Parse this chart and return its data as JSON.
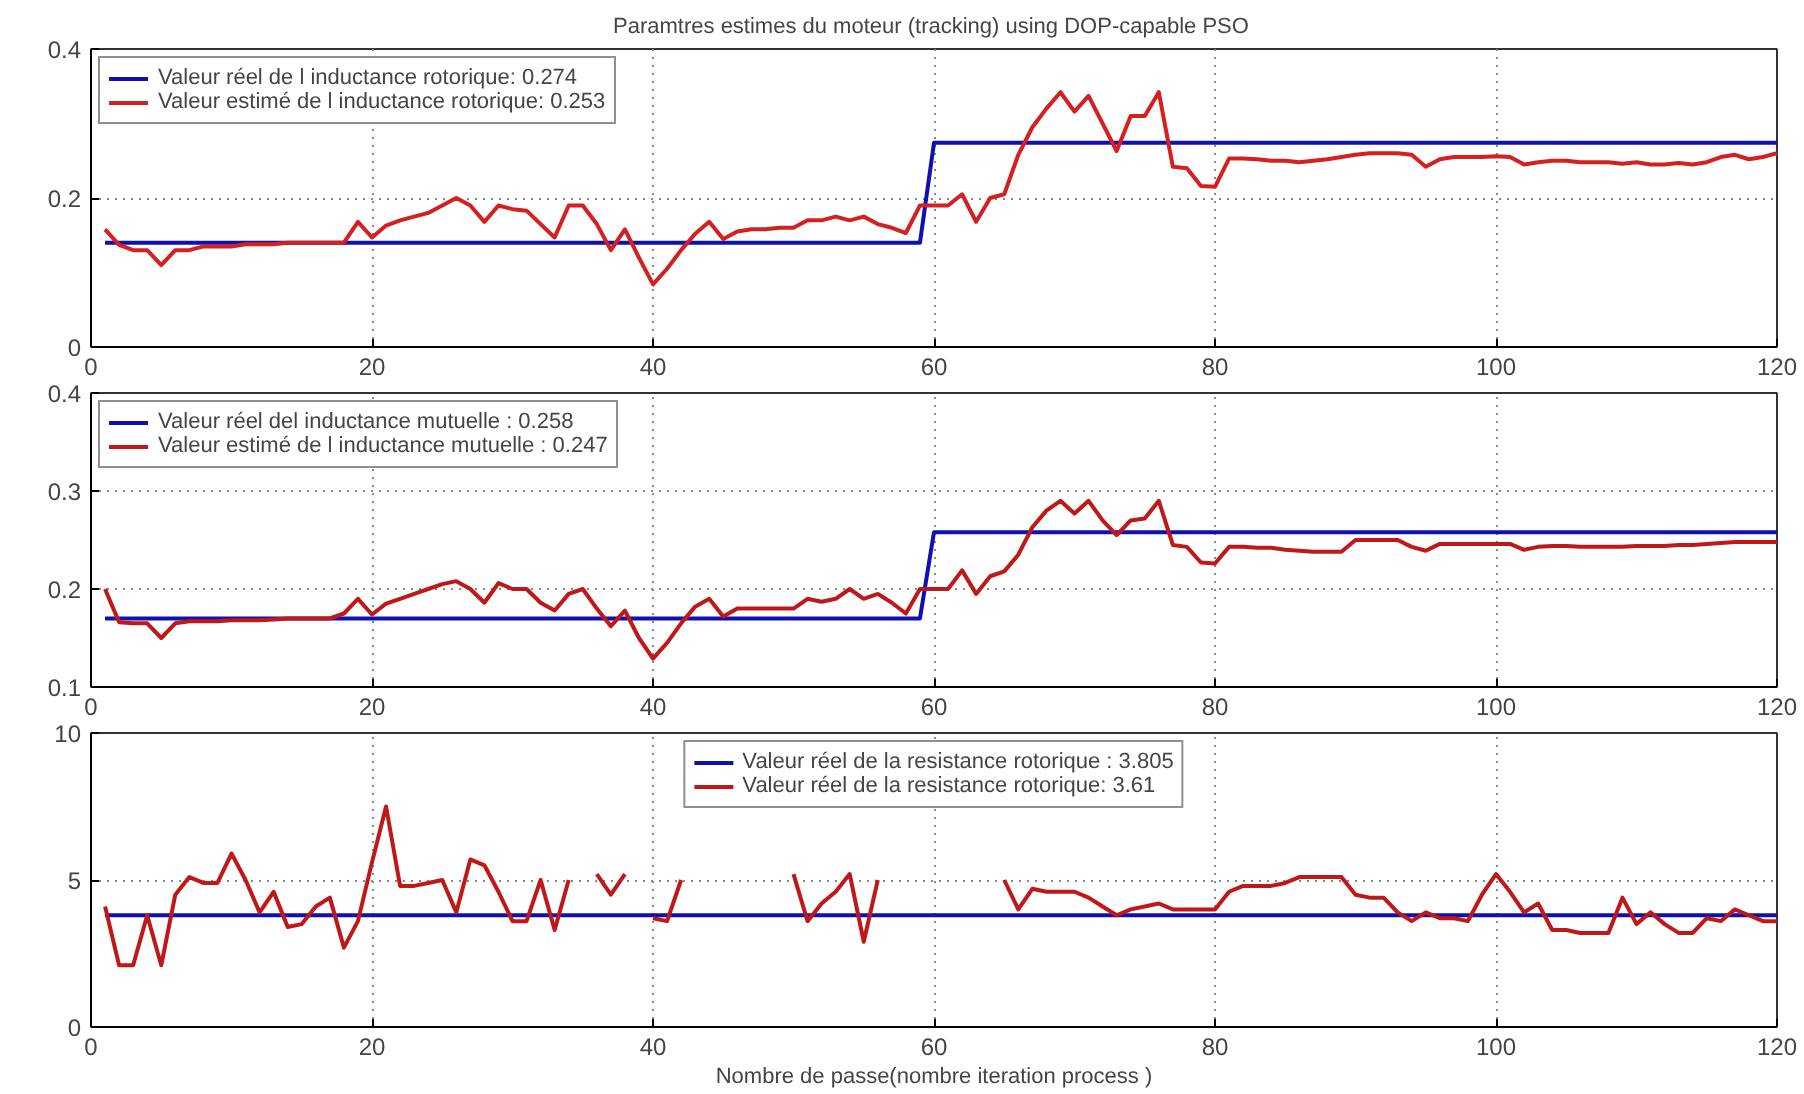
{
  "chart_data": [
    {
      "type": "line",
      "title": "Paramtres estimes du moteur  (tracking) using DOP-capable PSO",
      "xlim": [
        0,
        120
      ],
      "xticks": [
        0,
        20,
        40,
        60,
        80,
        100,
        120
      ],
      "ylim": [
        0,
        0.4
      ],
      "yticks": [
        0,
        0.2,
        0.4
      ],
      "grid": true,
      "legend": "top left",
      "marker": "none",
      "line_style": "solid",
      "series": [
        {
          "name": "Valeur réel de l inductance rotorique: 0.274",
          "color": "#1010b0",
          "x": [
            1,
            59,
            60,
            120
          ],
          "values": [
            0.14,
            0.14,
            0.274,
            0.274
          ]
        },
        {
          "name": "Valeur estimé de l inductance rotorique: 0.253",
          "color": "#d42020",
          "x": [
            1,
            2,
            3,
            4,
            5,
            6,
            7,
            8,
            9,
            10,
            11,
            12,
            13,
            14,
            15,
            16,
            17,
            18,
            19,
            20,
            21,
            22,
            23,
            24,
            25,
            26,
            27,
            28,
            29,
            30,
            31,
            32,
            33,
            34,
            35,
            36,
            37,
            38,
            39,
            40,
            41,
            42,
            43,
            44,
            45,
            46,
            47,
            48,
            49,
            50,
            51,
            52,
            53,
            54,
            55,
            56,
            57,
            58,
            59,
            60,
            61,
            62,
            63,
            64,
            65,
            66,
            67,
            68,
            69,
            70,
            71,
            72,
            73,
            74,
            75,
            76,
            77,
            78,
            79,
            80,
            81,
            82,
            83,
            84,
            85,
            86,
            87,
            88,
            89,
            90,
            91,
            92,
            93,
            94,
            95,
            96,
            97,
            98,
            99,
            100,
            101,
            102,
            103,
            104,
            105,
            106,
            107,
            108,
            109,
            110,
            111,
            112,
            113,
            114,
            115,
            116,
            117,
            118,
            119,
            120
          ],
          "values": [
            0.158,
            0.137,
            0.13,
            0.13,
            0.11,
            0.13,
            0.13,
            0.135,
            0.135,
            0.135,
            0.138,
            0.138,
            0.138,
            0.14,
            0.14,
            0.14,
            0.14,
            0.14,
            0.168,
            0.147,
            0.163,
            0.17,
            0.175,
            0.18,
            0.19,
            0.2,
            0.19,
            0.168,
            0.19,
            0.185,
            0.183,
            0.165,
            0.147,
            0.19,
            0.19,
            0.165,
            0.13,
            0.158,
            0.12,
            0.084,
            0.105,
            0.13,
            0.152,
            0.168,
            0.145,
            0.155,
            0.158,
            0.158,
            0.16,
            0.16,
            0.17,
            0.17,
            0.175,
            0.17,
            0.175,
            0.165,
            0.16,
            0.153,
            0.19,
            0.19,
            0.19,
            0.205,
            0.168,
            0.2,
            0.205,
            0.258,
            0.295,
            0.32,
            0.342,
            0.316,
            0.337,
            0.3,
            0.263,
            0.31,
            0.31,
            0.342,
            0.242,
            0.24,
            0.216,
            0.215,
            0.253,
            0.253,
            0.252,
            0.25,
            0.25,
            0.248,
            0.25,
            0.252,
            0.255,
            0.258,
            0.26,
            0.26,
            0.26,
            0.258,
            0.242,
            0.252,
            0.255,
            0.255,
            0.255,
            0.256,
            0.255,
            0.245,
            0.248,
            0.25,
            0.25,
            0.248,
            0.248,
            0.248,
            0.246,
            0.248,
            0.245,
            0.245,
            0.247,
            0.245,
            0.248,
            0.255,
            0.258,
            0.252,
            0.255,
            0.26
          ]
        }
      ]
    },
    {
      "type": "line",
      "xlim": [
        0,
        120
      ],
      "xticks": [
        0,
        20,
        40,
        60,
        80,
        100,
        120
      ],
      "ylim": [
        0.1,
        0.4
      ],
      "yticks": [
        0.1,
        0.2,
        0.3,
        0.4
      ],
      "grid": true,
      "legend": "top left",
      "marker": "none",
      "line_style": "solid",
      "series": [
        {
          "name": "Valeur réel del inductance mutuelle : 0.258",
          "color": "#1010b0",
          "x": [
            1,
            59,
            60,
            120
          ],
          "values": [
            0.17,
            0.17,
            0.258,
            0.258
          ]
        },
        {
          "name": "Valeur estimé de l inductance mutuelle : 0.247",
          "color": "#c01818",
          "x": [
            1,
            2,
            3,
            4,
            5,
            6,
            7,
            8,
            9,
            10,
            11,
            12,
            13,
            14,
            15,
            16,
            17,
            18,
            19,
            20,
            21,
            22,
            23,
            24,
            25,
            26,
            27,
            28,
            29,
            30,
            31,
            32,
            33,
            34,
            35,
            36,
            37,
            38,
            39,
            40,
            41,
            42,
            43,
            44,
            45,
            46,
            47,
            48,
            49,
            50,
            51,
            52,
            53,
            54,
            55,
            56,
            57,
            58,
            59,
            60,
            61,
            62,
            63,
            64,
            65,
            66,
            67,
            68,
            69,
            70,
            71,
            72,
            73,
            74,
            75,
            76,
            77,
            78,
            79,
            80,
            81,
            82,
            83,
            84,
            85,
            86,
            87,
            88,
            89,
            90,
            91,
            92,
            93,
            94,
            95,
            96,
            97,
            98,
            99,
            100,
            101,
            102,
            103,
            104,
            105,
            106,
            107,
            108,
            109,
            110,
            111,
            112,
            113,
            114,
            115,
            116,
            117,
            118,
            119,
            120
          ],
          "values": [
            0.2,
            0.166,
            0.165,
            0.165,
            0.15,
            0.165,
            0.167,
            0.167,
            0.167,
            0.168,
            0.168,
            0.168,
            0.169,
            0.17,
            0.17,
            0.17,
            0.17,
            0.175,
            0.19,
            0.174,
            0.185,
            0.19,
            0.195,
            0.2,
            0.205,
            0.208,
            0.2,
            0.186,
            0.206,
            0.2,
            0.2,
            0.186,
            0.178,
            0.195,
            0.2,
            0.18,
            0.162,
            0.178,
            0.15,
            0.129,
            0.145,
            0.165,
            0.182,
            0.19,
            0.172,
            0.18,
            0.18,
            0.18,
            0.18,
            0.18,
            0.19,
            0.187,
            0.19,
            0.2,
            0.19,
            0.195,
            0.186,
            0.175,
            0.2,
            0.2,
            0.2,
            0.219,
            0.195,
            0.213,
            0.218,
            0.235,
            0.263,
            0.28,
            0.29,
            0.277,
            0.29,
            0.27,
            0.255,
            0.27,
            0.272,
            0.29,
            0.245,
            0.243,
            0.227,
            0.226,
            0.243,
            0.243,
            0.242,
            0.242,
            0.24,
            0.239,
            0.238,
            0.238,
            0.238,
            0.25,
            0.25,
            0.25,
            0.25,
            0.243,
            0.239,
            0.246,
            0.246,
            0.246,
            0.246,
            0.246,
            0.246,
            0.24,
            0.243,
            0.244,
            0.244,
            0.243,
            0.243,
            0.243,
            0.243,
            0.244,
            0.244,
            0.244,
            0.245,
            0.245,
            0.246,
            0.247,
            0.248,
            0.248,
            0.248,
            0.248
          ]
        }
      ]
    },
    {
      "type": "line",
      "xlabel": "Nombre de passe(nombre iteration process )",
      "xlim": [
        0,
        120
      ],
      "xticks": [
        0,
        20,
        40,
        60,
        80,
        100,
        120
      ],
      "ylim": [
        0,
        10
      ],
      "yticks": [
        0,
        5,
        10
      ],
      "grid": true,
      "legend": "top",
      "marker": "none",
      "line_style": "solid",
      "series": [
        {
          "name": "Valeur réel de la resistance rotorique : 3.805",
          "color": "#1010b0",
          "x": [
            1,
            120
          ],
          "values": [
            3.8,
            3.8
          ]
        },
        {
          "name": "Valeur réel de la resistance rotorique: 3.61",
          "color": "#c01818",
          "x": [
            1,
            2,
            3,
            4,
            5,
            6,
            7,
            8,
            9,
            10,
            11,
            12,
            13,
            14,
            15,
            16,
            17,
            18,
            19,
            20,
            21,
            22,
            23,
            24,
            25,
            26,
            27,
            28,
            29,
            30,
            31,
            32,
            33,
            34,
            35,
            36,
            37,
            38,
            39,
            40,
            41,
            42,
            43,
            44,
            45,
            46,
            47,
            48,
            49,
            50,
            51,
            52,
            53,
            54,
            55,
            56,
            57,
            58,
            59,
            60,
            61,
            62,
            63,
            64,
            65,
            66,
            67,
            68,
            69,
            70,
            71,
            72,
            73,
            74,
            75,
            76,
            77,
            78,
            79,
            80,
            81,
            82,
            83,
            84,
            85,
            86,
            87,
            88,
            89,
            90,
            91,
            92,
            93,
            94,
            95,
            96,
            97,
            98,
            99,
            100,
            101,
            102,
            103,
            104,
            105,
            106,
            107,
            108,
            109,
            110,
            111,
            112,
            113,
            114,
            115,
            116,
            117,
            118,
            119,
            120
          ],
          "values": [
            4.1,
            2.1,
            2.1,
            3.8,
            2.1,
            4.5,
            5.1,
            4.9,
            4.9,
            5.9,
            5.0,
            3.9,
            4.6,
            3.4,
            3.5,
            4.1,
            4.4,
            2.7,
            3.6,
            5.6,
            7.5,
            4.8,
            4.8,
            4.9,
            5.0,
            3.9,
            5.7,
            5.5,
            4.6,
            3.6,
            3.6,
            5.0,
            3.3,
            5.0,
            null,
            5.2,
            4.5,
            5.2,
            null,
            3.7,
            3.6,
            5.0,
            null,
            null,
            null,
            null,
            null,
            null,
            null,
            5.2,
            3.6,
            4.2,
            4.6,
            5.2,
            2.9,
            5.0,
            null,
            null,
            null,
            null,
            null,
            null,
            null,
            null,
            5.0,
            4.0,
            4.7,
            4.6,
            4.6,
            4.6,
            4.4,
            4.1,
            3.8,
            4.0,
            4.1,
            4.2,
            4.0,
            4.0,
            4.0,
            4.0,
            4.6,
            4.8,
            4.8,
            4.8,
            4.9,
            5.1,
            5.1,
            5.1,
            5.1,
            4.5,
            4.4,
            4.4,
            3.9,
            3.6,
            3.9,
            3.7,
            3.7,
            3.6,
            4.5,
            5.2,
            4.6,
            3.9,
            4.2,
            3.3,
            3.3,
            3.2,
            3.2,
            3.2,
            4.4,
            3.5,
            3.9,
            3.5,
            3.2,
            3.2,
            3.7,
            3.6,
            4.0,
            3.8,
            3.6,
            3.6
          ]
        }
      ]
    }
  ]
}
